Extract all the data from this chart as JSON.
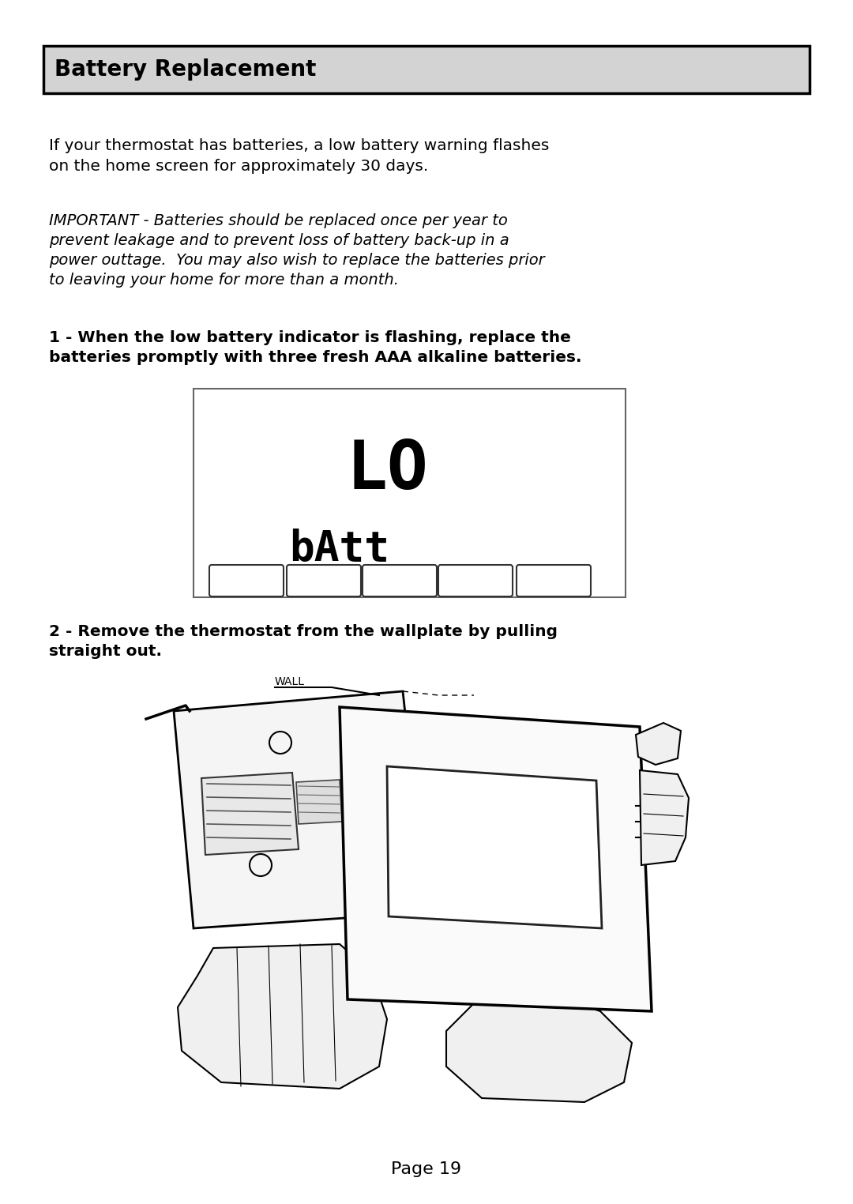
{
  "title": "Battery Replacement",
  "title_bg": "#d3d3d3",
  "title_border": "#000000",
  "bg_color": "#ffffff",
  "text_color": "#000000",
  "para1": "If your thermostat has batteries, a low battery warning flashes\non the home screen for approximately 30 days.",
  "para2_italic": "IMPORTANT - Batteries should be replaced once per year to\nprevent leakage and to prevent loss of battery back-up in a\npower outtage.  You may also wish to replace the batteries prior\nto leaving your home for more than a month.",
  "step1_bold": "1 - When the low battery indicator is flashing, replace the\nbatteries promptly with three fresh AAA alkaline batteries.",
  "step2_bold": "2 - Remove the thermostat from the wallplate by pulling\nstraight out.",
  "display_text_top": "LO",
  "display_text_bottom": "bAtt",
  "page_label": "Page 19",
  "wall_label": "WALL",
  "fig_width": 10.8,
  "fig_height": 15.24,
  "dpi": 100
}
